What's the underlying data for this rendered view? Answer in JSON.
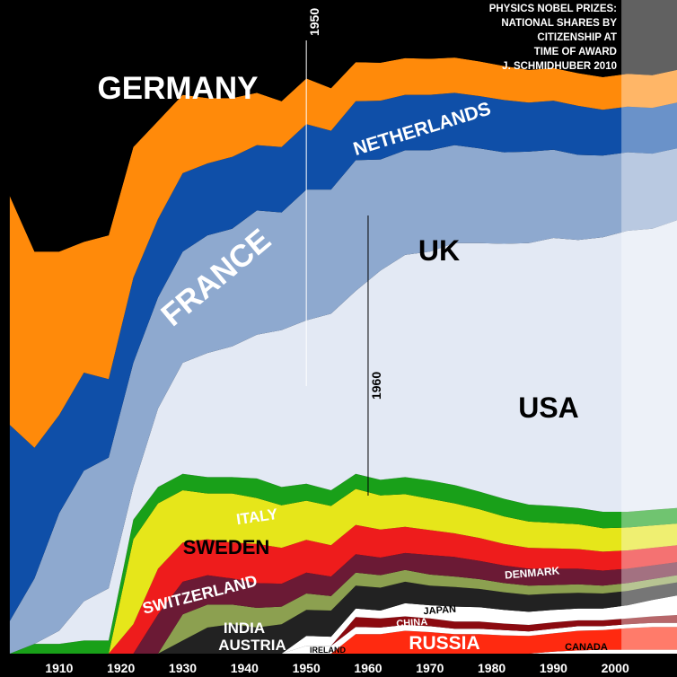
{
  "chart_data": {
    "type": "area",
    "subtype": "stacked-share",
    "title_lines": [
      "PHYSICS NOBEL PRIZES:",
      "NATIONAL SHARES BY",
      "CITIZENSHIP AT",
      "TIME OF AWARD",
      "J. SCHMIDHUBER 2010"
    ],
    "x_ticks": [
      "1910",
      "1920",
      "1930",
      "1940",
      "1950",
      "1960",
      "1970",
      "1980",
      "1990",
      "2000"
    ],
    "xlim": [
      1901,
      2010
    ],
    "ylim": [
      0,
      1
    ],
    "markers": [
      {
        "label": "1950",
        "year": 1950
      },
      {
        "label": "1960",
        "year": 1960
      }
    ],
    "projection_from_year": 2001,
    "years": [
      1902,
      1906,
      1910,
      1914,
      1918,
      1922,
      1926,
      1930,
      1934,
      1938,
      1942,
      1946,
      1950,
      1954,
      1958,
      1962,
      1966,
      1970,
      1974,
      1978,
      1982,
      1986,
      1990,
      1994,
      1998,
      2002,
      2006,
      2010
    ],
    "series": [
      {
        "name": "CANADA",
        "color": "#ffffff",
        "values": [
          0,
          0,
          0,
          0,
          0,
          0,
          0,
          0,
          0,
          0,
          0,
          0,
          0,
          0,
          0,
          0,
          0,
          0,
          0,
          0,
          0,
          0,
          0.003,
          0.005,
          0.006,
          0.006,
          0.006,
          0.006
        ]
      },
      {
        "name": "RUSSIA",
        "color": "#ff2a10",
        "values": [
          0,
          0,
          0,
          0,
          0,
          0,
          0,
          0,
          0,
          0,
          0,
          0,
          0,
          0,
          0.03,
          0.03,
          0.035,
          0.033,
          0.03,
          0.03,
          0.028,
          0.027,
          0.028,
          0.03,
          0.03,
          0.033,
          0.035,
          0.035
        ]
      },
      {
        "name": "IRELAND",
        "color": "#ffffff",
        "values": [
          0,
          0,
          0,
          0,
          0,
          0,
          0,
          0,
          0,
          0,
          0,
          0,
          0.012,
          0.012,
          0.011,
          0.01,
          0.009,
          0.009,
          0.008,
          0.008,
          0.008,
          0.007,
          0.007,
          0.007,
          0.006,
          0.006,
          0.006,
          0.006
        ]
      },
      {
        "name": "CHINA",
        "color": "#8b0a10",
        "values": [
          0,
          0,
          0,
          0,
          0,
          0,
          0,
          0,
          0,
          0,
          0,
          0,
          0,
          0,
          0.015,
          0.014,
          0.013,
          0.012,
          0.011,
          0.011,
          0.01,
          0.01,
          0.01,
          0.009,
          0.009,
          0.009,
          0.01,
          0.012
        ]
      },
      {
        "name": "JAPAN",
        "color": "#ffffff",
        "values": [
          0,
          0,
          0,
          0,
          0,
          0,
          0,
          0,
          0,
          0,
          0,
          0,
          0.015,
          0.014,
          0.013,
          0.012,
          0.02,
          0.02,
          0.023,
          0.022,
          0.021,
          0.02,
          0.019,
          0.018,
          0.018,
          0.02,
          0.025,
          0.03
        ]
      },
      {
        "name": "AUSTRIA",
        "color": "#222222",
        "values": [
          0,
          0,
          0,
          0,
          0,
          0,
          0,
          0.02,
          0.04,
          0.045,
          0.04,
          0.045,
          0.04,
          0.04,
          0.035,
          0.035,
          0.033,
          0.03,
          0.03,
          0.028,
          0.027,
          0.026,
          0.025,
          0.024,
          0.023,
          0.022,
          0.021,
          0.02
        ]
      },
      {
        "name": "INDIA",
        "color": "#8ca050",
        "values": [
          0,
          0,
          0,
          0,
          0,
          0,
          0,
          0.04,
          0.035,
          0.03,
          0.03,
          0.027,
          0.025,
          0.022,
          0.02,
          0.019,
          0.018,
          0.017,
          0.016,
          0.015,
          0.014,
          0.014,
          0.013,
          0.013,
          0.012,
          0.012,
          0.011,
          0.011
        ]
      },
      {
        "name": "DENMARK",
        "color": "#6b1a35",
        "values": [
          0,
          0,
          0,
          0,
          0,
          0,
          0.06,
          0.05,
          0.045,
          0.04,
          0.038,
          0.035,
          0.032,
          0.03,
          0.028,
          0.027,
          0.026,
          0.03,
          0.03,
          0.028,
          0.027,
          0.026,
          0.025,
          0.024,
          0.023,
          0.022,
          0.021,
          0.02
        ]
      },
      {
        "name": "SWITZERLAND",
        "color": "#ee1c1c",
        "values": [
          0,
          0,
          0,
          0,
          0,
          0.045,
          0.07,
          0.06,
          0.055,
          0.055,
          0.06,
          0.055,
          0.05,
          0.048,
          0.045,
          0.043,
          0.04,
          0.038,
          0.036,
          0.035,
          0.033,
          0.032,
          0.031,
          0.03,
          0.029,
          0.028,
          0.027,
          0.026
        ]
      },
      {
        "name": "SWEDEN",
        "color": "#e6e61a",
        "values": [
          0,
          0,
          0,
          0,
          0,
          0.13,
          0.1,
          0.08,
          0.07,
          0.075,
          0.07,
          0.065,
          0.06,
          0.06,
          0.055,
          0.052,
          0.05,
          0.048,
          0.046,
          0.044,
          0.042,
          0.04,
          0.039,
          0.038,
          0.036,
          0.035,
          0.034,
          0.033
        ]
      },
      {
        "name": "ITALY",
        "color": "#19a019",
        "values": [
          0,
          0.015,
          0.015,
          0.02,
          0.02,
          0.03,
          0.025,
          0.025,
          0.025,
          0.025,
          0.03,
          0.028,
          0.026,
          0.024,
          0.023,
          0.024,
          0.026,
          0.028,
          0.028,
          0.027,
          0.027,
          0.026,
          0.026,
          0.025,
          0.025,
          0.024,
          0.024,
          0.024
        ]
      },
      {
        "name": "USA",
        "color": "#e3e9f4",
        "values": [
          0,
          0,
          0.02,
          0.06,
          0.08,
          0.05,
          0.12,
          0.17,
          0.19,
          0.2,
          0.22,
          0.24,
          0.25,
          0.27,
          0.28,
          0.32,
          0.34,
          0.35,
          0.37,
          0.38,
          0.39,
          0.4,
          0.41,
          0.41,
          0.42,
          0.43,
          0.43,
          0.44
        ]
      },
      {
        "name": "UK",
        "color": "#8ea9cf",
        "values": [
          0.05,
          0.1,
          0.18,
          0.2,
          0.2,
          0.19,
          0.17,
          0.17,
          0.18,
          0.18,
          0.19,
          0.18,
          0.2,
          0.19,
          0.2,
          0.17,
          0.16,
          0.155,
          0.15,
          0.145,
          0.14,
          0.14,
          0.135,
          0.13,
          0.125,
          0.12,
          0.115,
          0.11
        ]
      },
      {
        "name": "FRANCE",
        "color": "#0f4fa8",
        "values": [
          0.3,
          0.2,
          0.15,
          0.15,
          0.12,
          0.13,
          0.12,
          0.12,
          0.11,
          0.11,
          0.1,
          0.1,
          0.1,
          0.09,
          0.09,
          0.09,
          0.085,
          0.085,
          0.08,
          0.08,
          0.08,
          0.075,
          0.075,
          0.075,
          0.07,
          0.07,
          0.07,
          0.07
        ]
      },
      {
        "name": "NETHERLANDS",
        "color": "#ff8a0a",
        "values": [
          0.35,
          0.3,
          0.25,
          0.2,
          0.22,
          0.2,
          0.15,
          0.12,
          0.1,
          0.09,
          0.08,
          0.07,
          0.07,
          0.065,
          0.06,
          0.058,
          0.056,
          0.055,
          0.054,
          0.053,
          0.052,
          0.05,
          0.05,
          0.05,
          0.05,
          0.05,
          0.05,
          0.05
        ]
      },
      {
        "name": "GERMANY",
        "color": "#000000",
        "values": [
          0.3,
          0.385,
          0.385,
          0.37,
          0.36,
          0.235,
          0.295,
          0.295,
          0.28,
          0.27,
          0.242,
          0.235,
          0.214,
          0.208,
          0.205,
          0.198,
          0.195,
          0.197,
          0.186,
          0.195,
          0.201,
          0.207,
          0.203,
          0.208,
          0.211,
          0.194,
          0.192,
          0.183
        ]
      }
    ],
    "labels": {
      "germany": "GERMANY",
      "netherlands": "NETHERLANDS",
      "france": "FRANCE",
      "uk": "UK",
      "usa": "USA",
      "italy": "ITALY",
      "sweden": "SWEDEN",
      "switzerland": "SWITZERLAND",
      "denmark": "DENMARK",
      "india": "INDIA",
      "austria": "AUSTRIA",
      "japan": "JAPAN",
      "china": "CHINA",
      "ireland": "IRELAND",
      "russia": "RUSSIA",
      "canada": "CANADA"
    }
  }
}
